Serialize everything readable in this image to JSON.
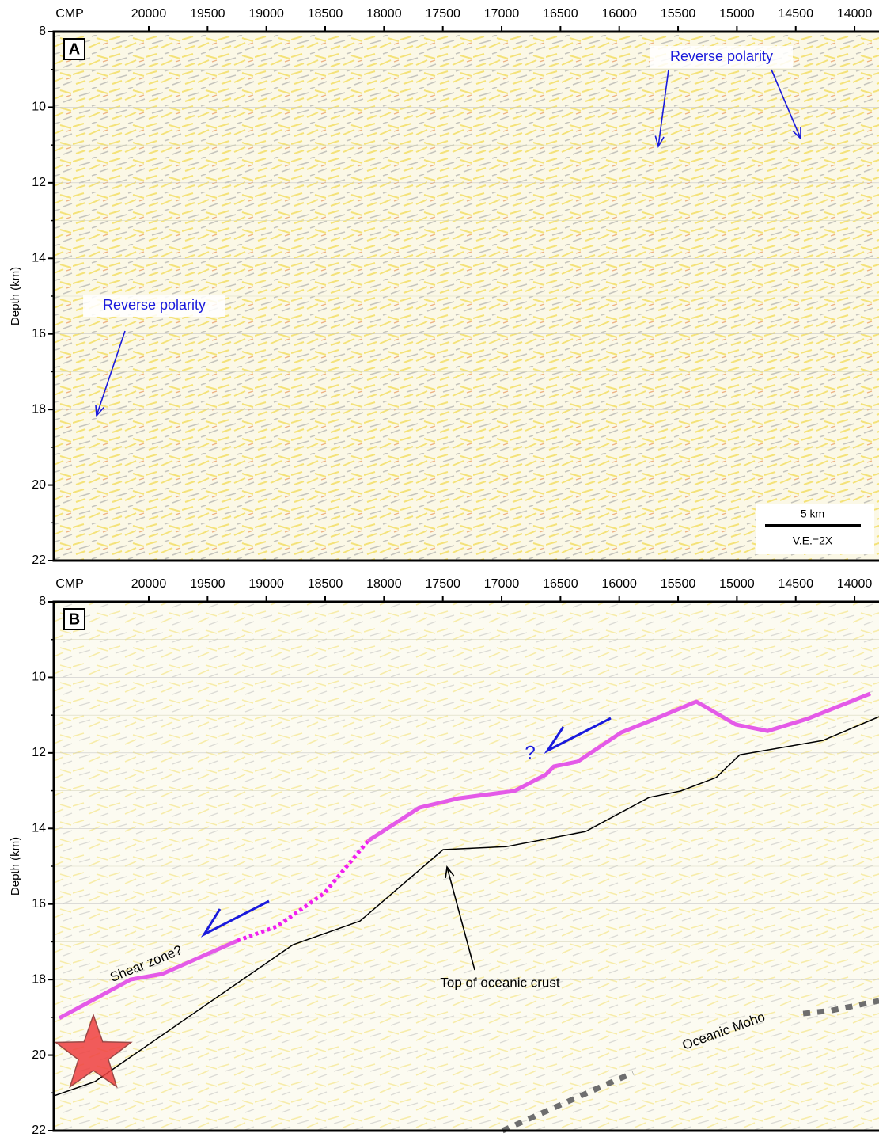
{
  "chart_data": [
    {
      "type": "seismic",
      "panel_label": "A",
      "x_label": "CMP",
      "y_label": "Depth (km)",
      "xlim": [
        20807,
        13792
      ],
      "xticks": [
        20000,
        19500,
        19000,
        18500,
        18000,
        17500,
        17000,
        16500,
        16000,
        15500,
        15000,
        14500,
        14000
      ],
      "ylim": [
        22,
        8
      ],
      "yticks": [
        8,
        10,
        12,
        14,
        16,
        18,
        20,
        22
      ],
      "yminor": [
        9,
        11,
        13,
        15,
        17,
        19,
        21
      ],
      "grid": true,
      "annotations": [
        "Reverse polarity",
        "Reverse polarity"
      ],
      "annotation_color": "#1a1adc",
      "scale_label": "5 km",
      "ve_label": "V.E.=2X",
      "series": []
    },
    {
      "type": "seismic",
      "panel_label": "B",
      "x_label": "CMP",
      "y_label": "Depth (km)",
      "xlim": [
        20807,
        13792
      ],
      "xticks": [
        20000,
        19500,
        19000,
        18500,
        18000,
        17500,
        17000,
        16500,
        16000,
        15500,
        15000,
        14500,
        14000
      ],
      "ylim": [
        22,
        8
      ],
      "yticks": [
        8,
        10,
        12,
        14,
        16,
        18,
        20,
        22
      ],
      "yminor": [
        9,
        11,
        13,
        15,
        17,
        19,
        21
      ],
      "grid": true,
      "annotations": [
        "?",
        "Shear zone?",
        "Top of oceanic crust",
        "Oceanic Moho"
      ],
      "annotation_color": "#1a1adc",
      "series": [
        {
          "color": "#e45ae8",
          "dash": false,
          "width": 5,
          "x": [
            20760,
            20154,
            19885,
            19246
          ],
          "values": [
            19.02,
            18.0,
            17.85,
            16.97
          ]
        },
        {
          "color": "#f020f0",
          "dash": true,
          "width": 5,
          "x": [
            19246,
            18910,
            18506,
            18136
          ],
          "values": [
            16.97,
            16.59,
            15.71,
            14.33
          ]
        },
        {
          "color": "#e45ae8",
          "dash": false,
          "width": 5,
          "x": [
            18136,
            17699,
            17363,
            16892,
            16623,
            16556,
            16354,
            15984,
            15681,
            15345,
            15008,
            14739,
            14403,
            13865
          ],
          "values": [
            14.33,
            13.45,
            13.2,
            13.01,
            12.57,
            12.36,
            12.23,
            11.46,
            11.08,
            10.64,
            11.25,
            11.42,
            11.1,
            10.43
          ]
        },
        {
          "color": "#000000",
          "dash": false,
          "width": 1.5,
          "x": [
            20807,
            20457,
            18775,
            18204,
            17497,
            16959,
            16286,
            15748,
            15479,
            15176,
            14975,
            14268,
            13791
          ],
          "values": [
            21.08,
            20.7,
            17.08,
            16.45,
            14.56,
            14.48,
            14.08,
            13.18,
            13.01,
            12.65,
            12.05,
            11.67,
            11.04
          ]
        },
        {
          "color": "#6e6e6e",
          "dash": true,
          "width": 7,
          "x": [
            16993,
            16085,
            15883,
            15000,
            14437,
            14201,
            13791
          ],
          "values": [
            22.0,
            20.74,
            20.47,
            null,
            18.9,
            18.82,
            18.56
          ]
        }
      ]
    }
  ]
}
